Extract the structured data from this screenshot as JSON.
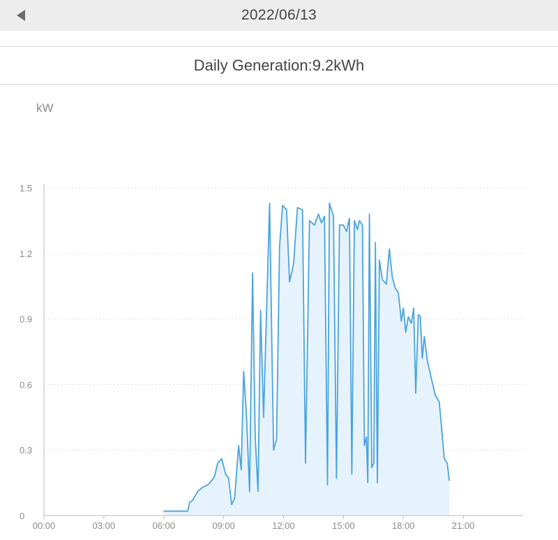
{
  "header": {
    "date": "2022/06/13",
    "back_icon": "back-triangle-icon"
  },
  "summary": {
    "text": "Daily Generation:9.2kWh"
  },
  "colors": {
    "line": "#4aa3df",
    "area": "#e6f3fc",
    "grid": "#e0e0e0",
    "axis": "#bdbdbd",
    "tick_text": "#8a8a8a"
  },
  "chart_data": {
    "type": "area",
    "unit": "kW",
    "xlim": [
      0,
      24
    ],
    "ylim": [
      0,
      1.5
    ],
    "x_ticks": [
      "00:00",
      "03:00",
      "06:00",
      "09:00",
      "12:00",
      "15:00",
      "18:00",
      "21:00"
    ],
    "y_ticks": [
      "0",
      "0.3",
      "0.6",
      "0.9",
      "1.2",
      "1.5"
    ],
    "grid": true,
    "series": [
      {
        "name": "",
        "points": [
          [
            6.0,
            0.02
          ],
          [
            7.2,
            0.02
          ],
          [
            7.3,
            0.06
          ],
          [
            7.45,
            0.07
          ],
          [
            7.7,
            0.11
          ],
          [
            7.95,
            0.13
          ],
          [
            8.2,
            0.14
          ],
          [
            8.4,
            0.16
          ],
          [
            8.55,
            0.18
          ],
          [
            8.7,
            0.24
          ],
          [
            8.9,
            0.26
          ],
          [
            9.1,
            0.19
          ],
          [
            9.25,
            0.17
          ],
          [
            9.4,
            0.05
          ],
          [
            9.55,
            0.08
          ],
          [
            9.75,
            0.32
          ],
          [
            9.88,
            0.21
          ],
          [
            10.0,
            0.66
          ],
          [
            10.15,
            0.45
          ],
          [
            10.3,
            0.11
          ],
          [
            10.45,
            1.11
          ],
          [
            10.58,
            0.36
          ],
          [
            10.72,
            0.11
          ],
          [
            10.85,
            0.94
          ],
          [
            11.0,
            0.45
          ],
          [
            11.3,
            1.43
          ],
          [
            11.5,
            0.3
          ],
          [
            11.65,
            0.35
          ],
          [
            11.8,
            1.23
          ],
          [
            11.95,
            1.42
          ],
          [
            12.15,
            1.4
          ],
          [
            12.3,
            1.07
          ],
          [
            12.5,
            1.15
          ],
          [
            12.7,
            1.41
          ],
          [
            12.95,
            1.4
          ],
          [
            13.1,
            0.24
          ],
          [
            13.3,
            1.35
          ],
          [
            13.55,
            1.33
          ],
          [
            13.75,
            1.38
          ],
          [
            13.9,
            1.34
          ],
          [
            14.05,
            1.37
          ],
          [
            14.2,
            0.14
          ],
          [
            14.3,
            1.43
          ],
          [
            14.5,
            1.37
          ],
          [
            14.65,
            0.17
          ],
          [
            14.8,
            1.33
          ],
          [
            15.0,
            1.33
          ],
          [
            15.15,
            1.3
          ],
          [
            15.3,
            1.36
          ],
          [
            15.42,
            0.19
          ],
          [
            15.55,
            1.35
          ],
          [
            15.7,
            1.31
          ],
          [
            15.8,
            1.35
          ],
          [
            15.95,
            1.33
          ],
          [
            16.05,
            0.32
          ],
          [
            16.15,
            0.36
          ],
          [
            16.22,
            0.15
          ],
          [
            16.3,
            1.38
          ],
          [
            16.42,
            0.22
          ],
          [
            16.52,
            0.24
          ],
          [
            16.6,
            1.25
          ],
          [
            16.7,
            0.15
          ],
          [
            16.8,
            1.17
          ],
          [
            16.95,
            1.08
          ],
          [
            17.15,
            1.06
          ],
          [
            17.3,
            1.22
          ],
          [
            17.45,
            1.09
          ],
          [
            17.6,
            1.04
          ],
          [
            17.75,
            1.02
          ],
          [
            17.9,
            0.89
          ],
          [
            18.0,
            0.95
          ],
          [
            18.12,
            0.84
          ],
          [
            18.25,
            0.91
          ],
          [
            18.4,
            0.88
          ],
          [
            18.52,
            0.95
          ],
          [
            18.62,
            0.56
          ],
          [
            18.75,
            0.92
          ],
          [
            18.85,
            0.91
          ],
          [
            18.95,
            0.72
          ],
          [
            19.05,
            0.82
          ],
          [
            19.2,
            0.71
          ],
          [
            19.4,
            0.63
          ],
          [
            19.6,
            0.55
          ],
          [
            19.8,
            0.52
          ],
          [
            20.05,
            0.26
          ],
          [
            20.2,
            0.24
          ],
          [
            20.3,
            0.16
          ]
        ]
      }
    ]
  }
}
